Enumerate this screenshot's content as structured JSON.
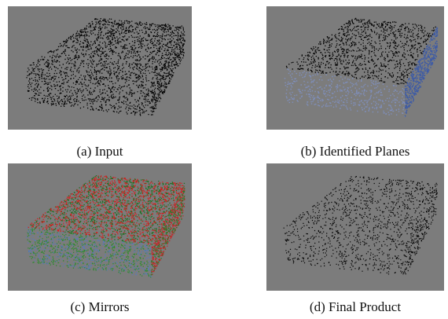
{
  "figure": {
    "panels": [
      {
        "caption": "(a) Input"
      },
      {
        "caption": "(b) Identified Planes"
      },
      {
        "caption": "(c) Mirrors"
      },
      {
        "caption": "(d) Final Product"
      }
    ]
  }
}
